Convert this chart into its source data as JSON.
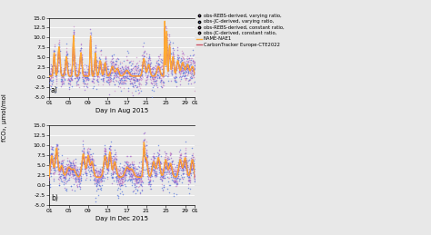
{
  "xlabel_top": "Day in Aug 2015",
  "xlabel_bot": "Day in Dec 2015",
  "ylabel": "fCO₂, μmol/mol",
  "ylim": [
    -5.0,
    15.0
  ],
  "yticks": [
    -5.0,
    -2.5,
    0.0,
    2.5,
    5.0,
    7.5,
    10.0,
    12.5,
    15.0
  ],
  "xticks_labels": [
    "01",
    "05",
    "09",
    "13",
    "17",
    "21",
    "25",
    "29",
    "01"
  ],
  "xticks_values": [
    1,
    5,
    9,
    13,
    17,
    21,
    25,
    29,
    31
  ],
  "label_a": "a)",
  "label_b": "b)",
  "legend_entries": [
    {
      "label": "obs-REBS-derived, varying ratio,",
      "color": "#9966cc"
    },
    {
      "label": "obs-JC-derived, varying ratio,",
      "color": "#5577dd"
    },
    {
      "label": "obs-REBS-derived, constant ratio,",
      "color": "#cc88cc"
    },
    {
      "label": "obs-JC-derived, constant ratio,",
      "color": "#cc88bb"
    },
    {
      "label": "NAME-NAE1",
      "color": "#ffaa33"
    },
    {
      "label": "CarbonTracker Europe-CTE2022",
      "color": "#cc5566"
    }
  ],
  "bg_color": "#e8e8e8",
  "line_name_color": "#ffaa33",
  "line_ct_color": "#cc5566"
}
